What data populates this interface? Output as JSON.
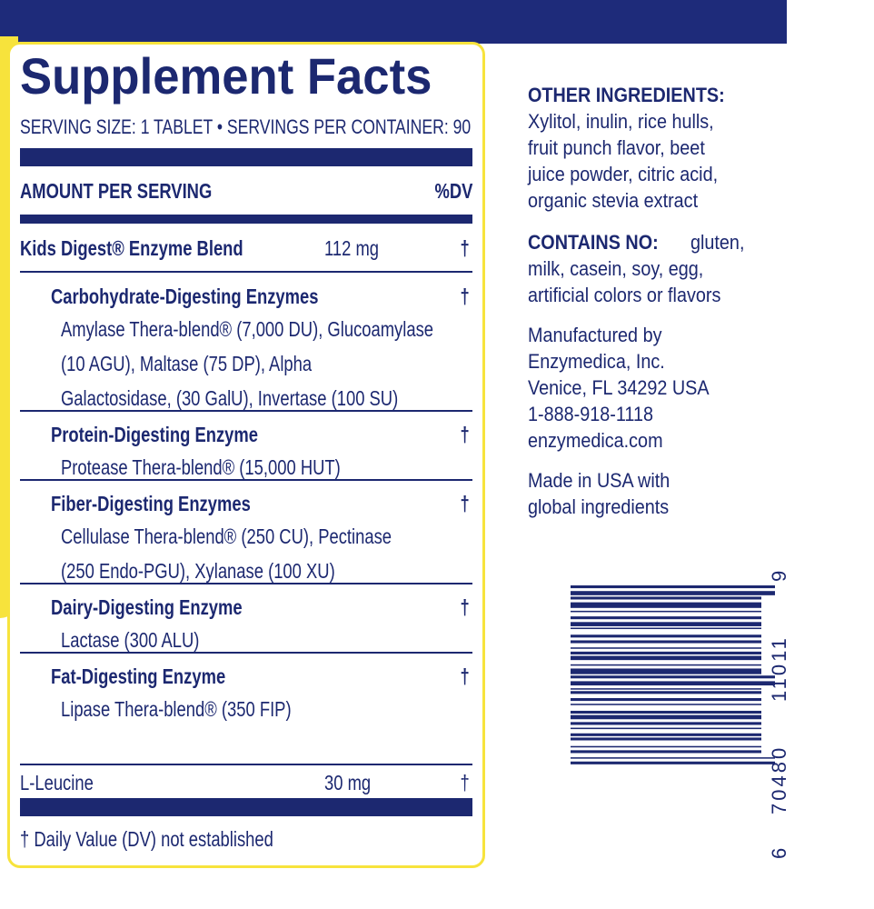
{
  "header": {
    "title": "Supplement Facts",
    "serving": "SERVING SIZE: 1 TABLET • SERVINGS PER CONTAINER: 90"
  },
  "table": {
    "amount_header": "AMOUNT PER SERVING",
    "dv_header": "%DV",
    "blend": {
      "name": "Kids Digest® Enzyme Blend",
      "amount": "112 mg",
      "dv": "†"
    },
    "groups": [
      {
        "name": "Carbohydrate-Digesting Enzymes",
        "dv": "†",
        "lines": [
          "Amylase Thera-blend® (7,000 DU), Glucoamylase",
          "(10 AGU), Maltase (75 DP), Alpha",
          "Galactosidase, (30 GalU), Invertase (100 SU)"
        ]
      },
      {
        "name": "Protein-Digesting Enzyme",
        "dv": "†",
        "lines": [
          "Protease Thera-blend® (15,000 HUT)"
        ]
      },
      {
        "name": "Fiber-Digesting Enzymes",
        "dv": "†",
        "lines": [
          "Cellulase Thera-blend® (250 CU), Pectinase",
          "(250 Endo-PGU), Xylanase (100 XU)"
        ]
      },
      {
        "name": "Dairy-Digesting Enzyme",
        "dv": "†",
        "lines": [
          "Lactase (300 ALU)"
        ]
      },
      {
        "name": "Fat-Digesting Enzyme",
        "dv": "†",
        "lines": [
          "Lipase Thera-blend® (350 FIP)"
        ]
      }
    ],
    "leucine": {
      "name": "L-Leucine",
      "amount": "30 mg",
      "dv": "†"
    },
    "footnote": "† Daily Value (DV) not established"
  },
  "side": {
    "other_ingredients": {
      "label": "OTHER INGREDIENTS:",
      "lines": [
        "Xylitol, inulin, rice hulls,",
        "fruit punch flavor, beet",
        "juice powder, citric acid,",
        "organic stevia extract"
      ]
    },
    "contains_no": {
      "label": "CONTAINS NO:",
      "lines": [
        "gluten,",
        "milk, casein, soy, egg,",
        "artificial colors or flavors"
      ]
    },
    "manufacturer": [
      "Manufactured by",
      "Enzymedica, Inc.",
      "Venice, FL 34292 USA",
      "1-888-918-1118",
      "enzymedica.com"
    ],
    "origin": [
      "Made in USA with",
      "global ingredients"
    ]
  },
  "barcode": {
    "digits": [
      "6",
      "70480",
      "11011",
      "9"
    ]
  }
}
